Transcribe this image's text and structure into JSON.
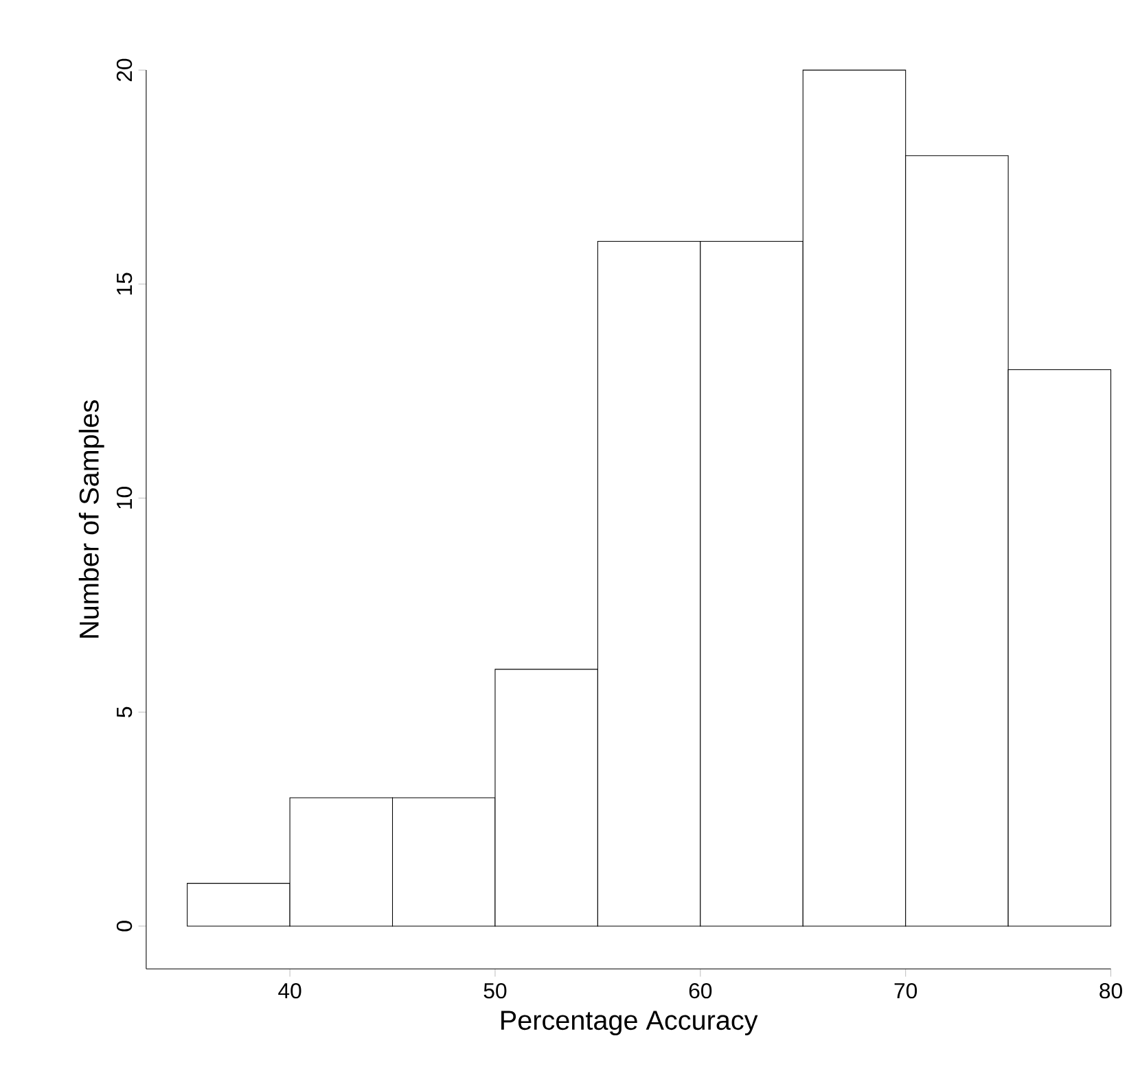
{
  "chart_data": {
    "type": "histogram",
    "xlabel": "Percentage Accuracy",
    "ylabel": "Number of Samples",
    "bins": [
      35,
      40,
      45,
      50,
      55,
      60,
      65,
      70,
      75,
      80
    ],
    "values": [
      1,
      3,
      3,
      6,
      16,
      16,
      20,
      18,
      13
    ],
    "color": "#ffffff",
    "xlim": [
      33,
      80
    ],
    "ylim": [
      -1,
      20
    ],
    "xticks": [
      40,
      50,
      60,
      70,
      80
    ],
    "yticks": [
      0,
      5,
      10,
      15,
      20
    ]
  }
}
